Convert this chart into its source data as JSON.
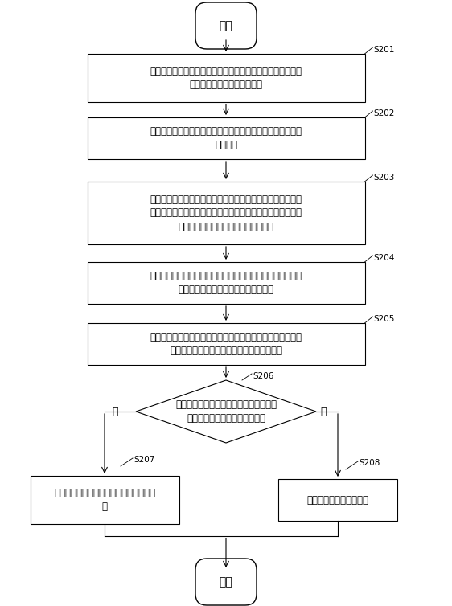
{
  "background_color": "#ffffff",
  "box_edge_color": "#000000",
  "box_color": "#ffffff",
  "text_color": "#000000",
  "arrow_color": "#000000",
  "font_size": 8.5,
  "small_font_size": 7.5,
  "start_text": "开始",
  "end_text": "结束",
  "s201_text": "当同时接收到多个上层调用者的调用请求时，采用预设的驱动\n模块分别执行对应的驱动操作",
  "s202_text": "在预设的驱动层接口中分别生成与所述上层调用者一一对应的\n注册句柄",
  "s203_text": "当相应的驱动操作执行完毕时，采用预设的驱动层服务模块基\n于所述驱动操作的执行结果生成包括对应的注册句柄的执行结\n果消息事件并发送至对应的上层调用者",
  "s204_text": "当在所述驱动层接口中分别生成对应的注册句柄时，在预设的\n驱动层服务模块中生成对应的窗口句柄",
  "s205_text": "当对应的上层调用者退出时，删除所述驱动层接口中对应的注\n册句柄和所述驱动层服务模块对应的窗口句柄",
  "s206_text": "当所述驱动层接口关闭时，判断所述驱动\n层服务模块中是否存在窗口句柄",
  "s207_text": "将所述驱动层服务模块继续保持在开启状\n态",
  "s208_text": "关闭所述驱动层服务模块",
  "yes_text": "是",
  "no_text": "否"
}
